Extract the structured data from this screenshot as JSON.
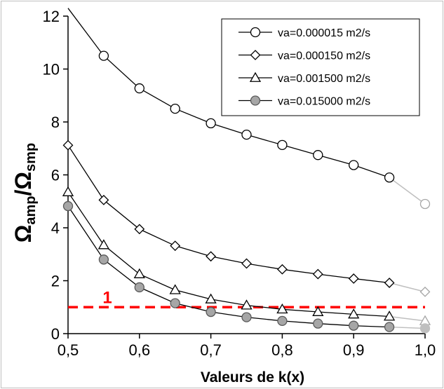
{
  "chart_data": {
    "type": "line",
    "xlabel": "Valeurs de k(x)",
    "ylabel_main": "Ω",
    "ylabel_sub1": "amp",
    "ylabel_slash": "/",
    "ylabel_sub2": "smp",
    "x": [
      0.5,
      0.55,
      0.6,
      0.65,
      0.7,
      0.75,
      0.8,
      0.85,
      0.9,
      0.95,
      1.0
    ],
    "xlim": [
      0.5,
      1.0
    ],
    "ylim": [
      0,
      12
    ],
    "x_ticks": [
      0.5,
      0.6,
      0.7,
      0.8,
      0.9,
      1.0
    ],
    "x_tick_labels": [
      "0,5",
      "0,6",
      "0,7",
      "0,8",
      "0,9",
      "1,0"
    ],
    "y_ticks": [
      0,
      2,
      4,
      6,
      8,
      10,
      12
    ],
    "y_tick_labels": [
      "0",
      "2",
      "4",
      "6",
      "8",
      "10",
      "12"
    ],
    "grid": false,
    "legend_position": "top-right",
    "reference_line": {
      "y": 1.0,
      "label": "1",
      "color": "#ff0000"
    },
    "series": [
      {
        "name": "va=0.000015 m2/s",
        "marker": "circle-open",
        "values": [
          12.3,
          10.5,
          9.27,
          8.5,
          7.95,
          7.52,
          7.13,
          6.75,
          6.37,
          5.9,
          4.9
        ]
      },
      {
        "name": "va=0.000150 m2/s",
        "marker": "diamond-open",
        "values": [
          7.12,
          5.05,
          3.95,
          3.32,
          2.92,
          2.65,
          2.43,
          2.25,
          2.08,
          1.92,
          1.58
        ]
      },
      {
        "name": "va=0.001500 m2/s",
        "marker": "triangle-open",
        "values": [
          5.35,
          3.35,
          2.25,
          1.65,
          1.3,
          1.07,
          0.92,
          0.82,
          0.73,
          0.65,
          0.48
        ]
      },
      {
        "name": "va=0.015000 m2/s",
        "marker": "circle-gray",
        "values": [
          4.82,
          2.8,
          1.75,
          1.15,
          0.82,
          0.62,
          0.48,
          0.38,
          0.3,
          0.25,
          0.2
        ]
      }
    ]
  }
}
